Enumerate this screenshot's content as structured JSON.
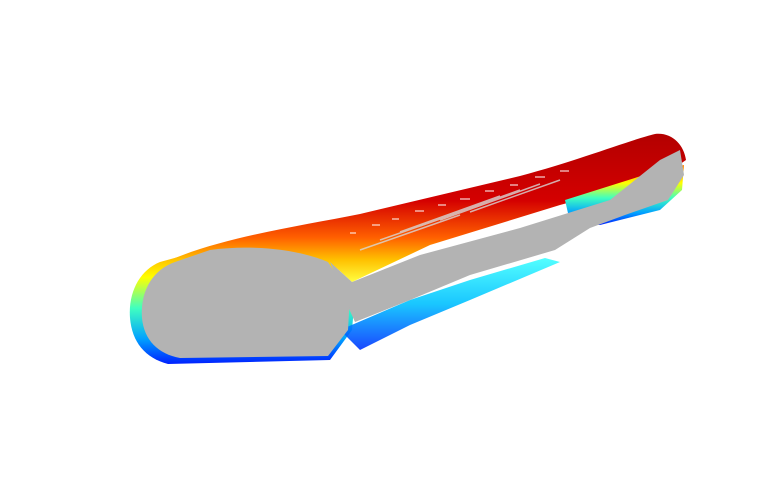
{
  "scene": {
    "subject": "point-cloud-tube-render",
    "background_color": "#ffffff",
    "body_color": "#b3b3b3",
    "colormap": "jet",
    "colormap_stops": [
      "#00008f",
      "#0000ff",
      "#00ffff",
      "#ffff00",
      "#ff8000",
      "#ff0000",
      "#8f0000"
    ],
    "top_color": "#b30000",
    "bottom_color": "#0033ff",
    "cap_color": "#b3b3b3"
  }
}
